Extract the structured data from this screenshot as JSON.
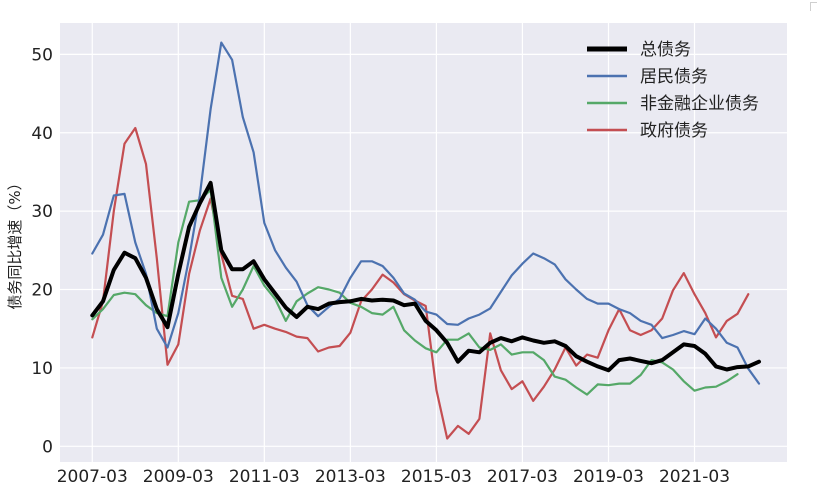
{
  "chart_data": {
    "type": "line",
    "title": "",
    "xlabel": "",
    "ylabel": "债务同比增速（%）",
    "ylim": [
      -2,
      54
    ],
    "yticks": [
      0,
      10,
      20,
      30,
      40,
      50
    ],
    "xticks": [
      {
        "label": "2007-03",
        "year": 2007.0
      },
      {
        "label": "2009-03",
        "year": 2009.0
      },
      {
        "label": "2011-03",
        "year": 2011.0
      },
      {
        "label": "2013-03",
        "year": 2013.0
      },
      {
        "label": "2015-03",
        "year": 2015.0
      },
      {
        "label": "2017-03",
        "year": 2017.0
      },
      {
        "label": "2019-03",
        "year": 2019.0
      },
      {
        "label": "2021-03",
        "year": 2021.0
      }
    ],
    "xlim": [
      2006.25,
      2023.15
    ],
    "x_start": 2007.0,
    "x_step": 0.25,
    "grid": true,
    "legend_position": "top-right",
    "series": [
      {
        "name": "总债务",
        "color": "#000000",
        "width": 4,
        "values": [
          16.7,
          18.5,
          22.5,
          24.7,
          24.0,
          21.5,
          17.5,
          15.2,
          22.0,
          28.0,
          31.0,
          33.6,
          25.0,
          22.6,
          22.6,
          23.6,
          21.3,
          19.5,
          17.7,
          16.5,
          17.8,
          17.5,
          18.2,
          18.4,
          18.5,
          18.8,
          18.6,
          18.7,
          18.6,
          18.0,
          18.2,
          16.0,
          14.8,
          13.2,
          10.8,
          12.2,
          12.0,
          13.2,
          13.8,
          13.4,
          13.9,
          13.5,
          13.2,
          13.4,
          12.8,
          11.5,
          10.8,
          10.2,
          9.7,
          11.0,
          11.2,
          10.9,
          10.6,
          11.0,
          12.0,
          13.0,
          12.8,
          11.8,
          10.2,
          9.8,
          10.1,
          10.2,
          10.8
        ]
      },
      {
        "name": "居民债务",
        "color": "#4c72b0",
        "width": 2.2,
        "values": [
          24.6,
          27.0,
          32.0,
          32.2,
          26.0,
          22.0,
          15.0,
          12.6,
          17.0,
          24.0,
          32.0,
          43.0,
          51.5,
          49.3,
          42.0,
          37.5,
          28.5,
          25.0,
          22.8,
          21.0,
          18.0,
          16.6,
          17.8,
          18.8,
          21.5,
          23.6,
          23.6,
          23.0,
          21.5,
          19.5,
          18.7,
          17.2,
          16.8,
          15.6,
          15.5,
          16.3,
          16.8,
          17.6,
          19.7,
          21.8,
          23.3,
          24.6,
          24.0,
          23.2,
          21.3,
          20.0,
          18.8,
          18.2,
          18.2,
          17.5,
          17.0,
          16.0,
          15.5,
          13.8,
          14.2,
          14.7,
          14.3,
          16.3,
          15.0,
          13.2,
          12.6,
          9.9,
          8.0
        ]
      },
      {
        "name": "非金融企业债务",
        "color": "#55a868",
        "width": 2.2,
        "values": [
          16.2,
          17.5,
          19.3,
          19.6,
          19.4,
          18.0,
          17.0,
          16.6,
          26.0,
          31.2,
          31.4,
          32.7,
          21.5,
          17.8,
          20.0,
          23.0,
          20.5,
          18.8,
          16.0,
          18.5,
          19.5,
          20.3,
          20.0,
          19.6,
          18.3,
          17.8,
          17.0,
          16.8,
          17.8,
          14.8,
          13.5,
          12.5,
          12.0,
          13.6,
          13.6,
          14.4,
          12.6,
          12.3,
          13.0,
          11.7,
          12.0,
          12.0,
          11.0,
          8.9,
          8.5,
          7.5,
          6.6,
          7.9,
          7.8,
          8.0,
          8.0,
          9.1,
          11.0,
          10.7,
          9.8,
          8.3,
          7.1,
          7.5,
          7.6,
          8.3,
          9.2
        ]
      },
      {
        "name": "政府债务",
        "color": "#c44e52",
        "width": 2.2,
        "values": [
          13.9,
          18.5,
          30.0,
          38.6,
          40.6,
          36.0,
          24.0,
          10.4,
          13.0,
          22.0,
          27.5,
          31.6,
          24.5,
          19.2,
          18.8,
          15.0,
          15.5,
          15.0,
          14.6,
          14.0,
          13.8,
          12.1,
          12.6,
          12.8,
          14.5,
          18.5,
          20.0,
          21.9,
          20.9,
          19.4,
          18.6,
          17.9,
          7.2,
          1.0,
          2.6,
          1.6,
          3.5,
          14.4,
          9.7,
          7.3,
          8.3,
          5.8,
          7.6,
          9.8,
          12.6,
          10.3,
          11.7,
          11.3,
          14.8,
          17.5,
          14.8,
          14.2,
          14.8,
          16.3,
          19.9,
          22.1,
          19.4,
          17.0,
          13.9,
          16.0,
          16.9,
          19.4
        ]
      }
    ]
  }
}
